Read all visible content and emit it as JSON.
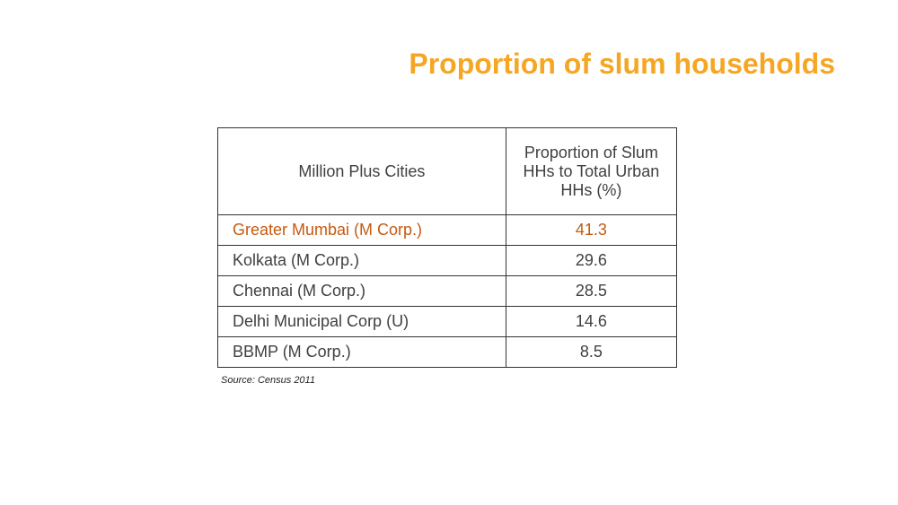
{
  "slide": {
    "title": "Proportion of slum households"
  },
  "table": {
    "headers": {
      "city": "Million Plus Cities",
      "value": "Proportion of Slum HHs to Total Urban HHs  (%)"
    },
    "rows": [
      {
        "city": "Greater Mumbai (M Corp.)",
        "value": "41.3",
        "highlight": true
      },
      {
        "city": "Kolkata (M Corp.)",
        "value": "29.6",
        "highlight": false
      },
      {
        "city": "Chennai (M Corp.)",
        "value": "28.5",
        "highlight": false
      },
      {
        "city": "Delhi Municipal Corp (U)",
        "value": "14.6",
        "highlight": false
      },
      {
        "city": "BBMP (M Corp.)",
        "value": "8.5",
        "highlight": false
      }
    ]
  },
  "source": "Source: Census 2011",
  "colors": {
    "title": "#F5A623",
    "highlight_row": "#C55A11",
    "text": "#404040"
  }
}
